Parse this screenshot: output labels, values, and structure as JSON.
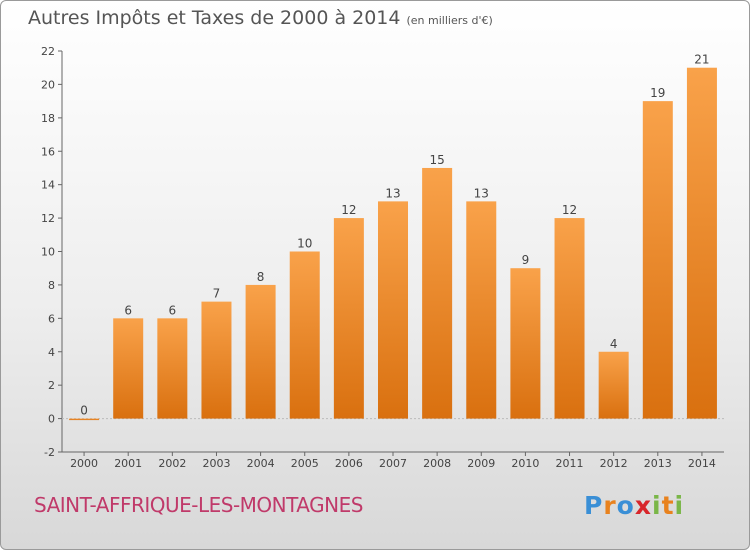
{
  "header": {
    "title": "Autres Impôts et Taxes de 2000 à 2014",
    "unit": "(en milliers d'€)"
  },
  "footer": {
    "city": "SAINT-AFFRIQUE-LES-MONTAGNES",
    "logo_text": "Proxiti",
    "logo_colors": [
      "#3a8fd6",
      "#e8821e",
      "#3a8fd6",
      "#d8262b",
      "#7ab648",
      "#e8821e",
      "#7ab648"
    ]
  },
  "chart_data": {
    "type": "bar",
    "title": "Autres Impôts et Taxes de 2000 à 2014",
    "ylabel": "",
    "xlabel": "",
    "categories": [
      "2000",
      "2001",
      "2002",
      "2003",
      "2004",
      "2005",
      "2006",
      "2007",
      "2008",
      "2009",
      "2010",
      "2011",
      "2012",
      "2013",
      "2014"
    ],
    "values": [
      0,
      6,
      6,
      7,
      8,
      10,
      12,
      13,
      15,
      13,
      9,
      12,
      4,
      19,
      21
    ],
    "ylim": [
      -2,
      22
    ],
    "yticks": [
      -2,
      0,
      2,
      4,
      6,
      8,
      10,
      12,
      14,
      16,
      18,
      20,
      22
    ],
    "grid": false,
    "legend": "none",
    "bar_color": "#f08a1e"
  }
}
